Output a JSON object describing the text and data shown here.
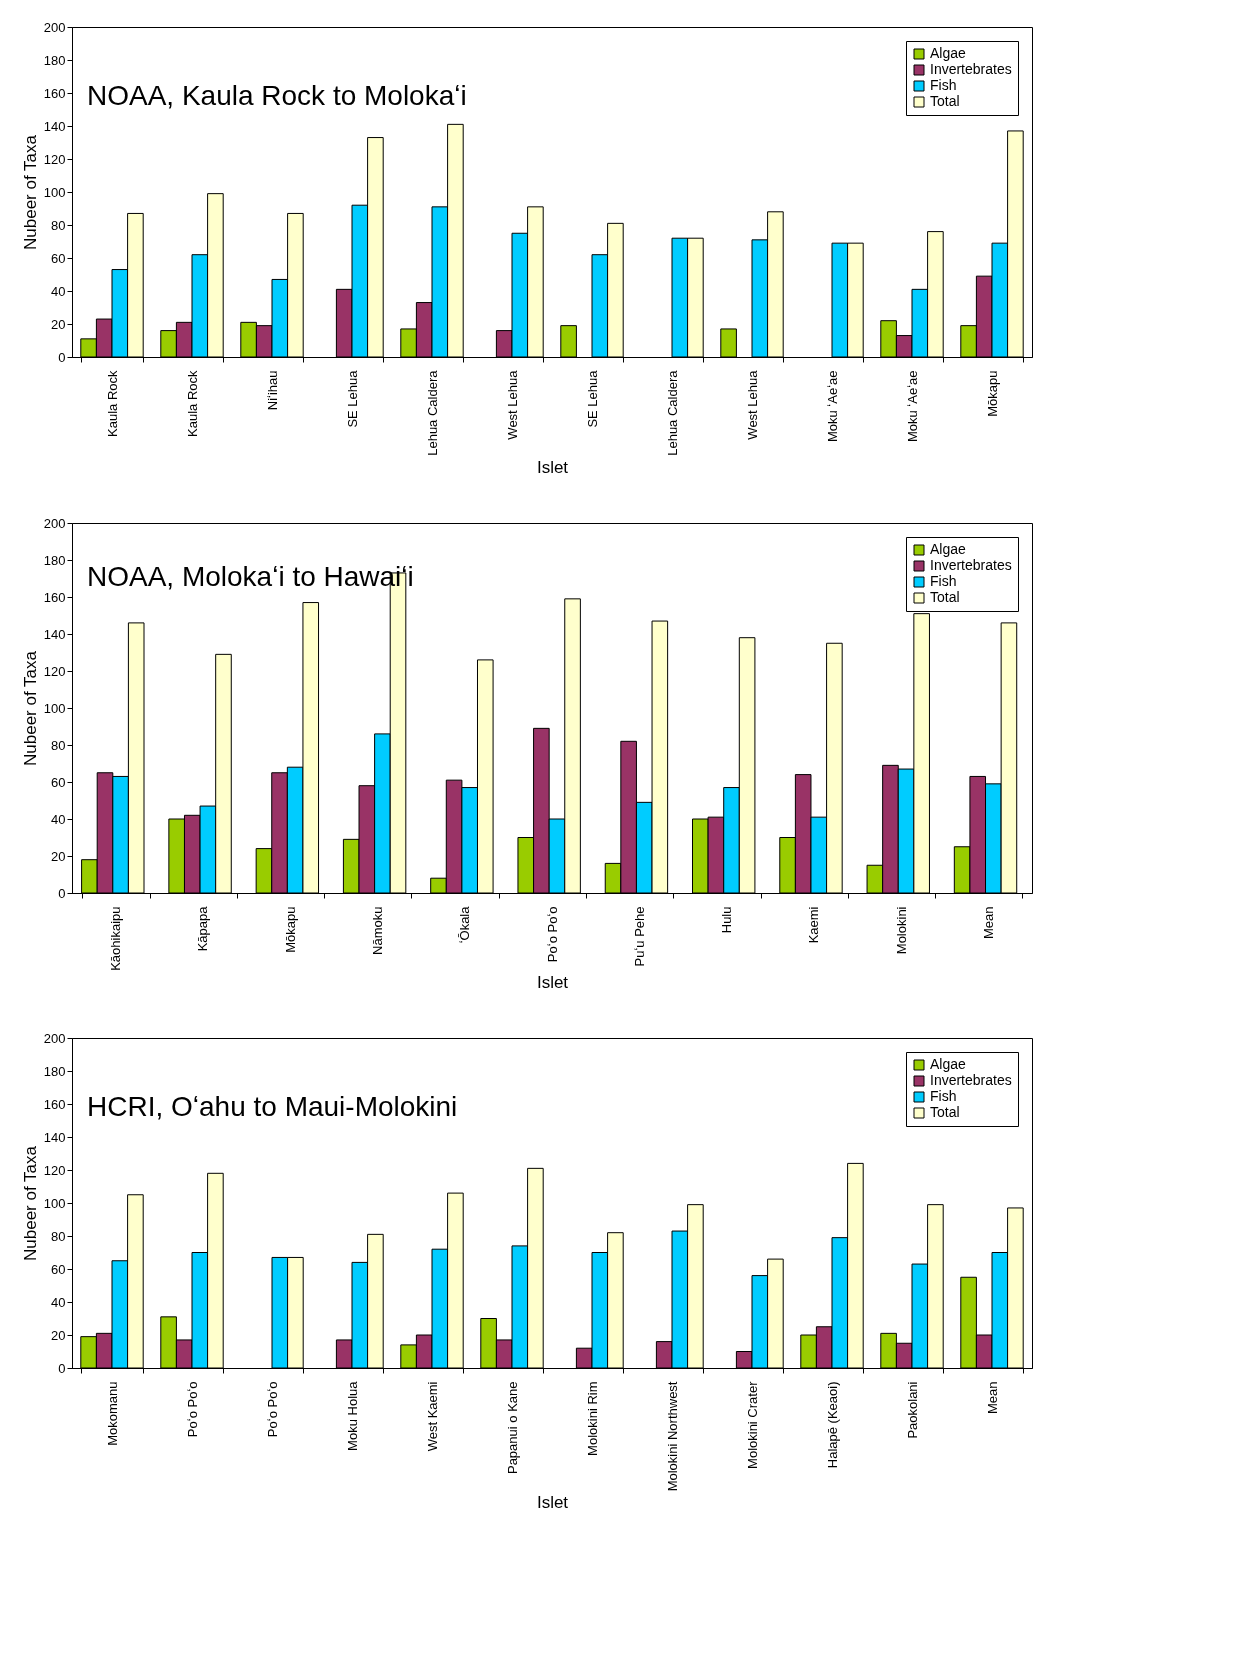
{
  "chart_data": [
    {
      "type": "bar",
      "title": "NOAA, Kaula Rock to Molokaʻi",
      "xlabel": "Islet",
      "ylabel": "Nubeer of Taxa",
      "categories": [
        "Kaula Rock",
        "Kaula Rock",
        "Niʻihau",
        "SE Lehua",
        "Lehua Caldera",
        "West Lehua",
        "SE Lehua",
        "Lehua Caldera",
        "West Lehua",
        "Moku ʻAeʻae",
        "Moku ʻAeʻae",
        "Mōkapu"
      ],
      "ylim": [
        0,
        200
      ],
      "yticks": [
        0,
        20,
        40,
        60,
        80,
        100,
        120,
        140,
        160,
        180,
        200
      ],
      "grid": false,
      "legend": "top right",
      "series": [
        {
          "name": "Algae",
          "color": "#99cc00",
          "values": [
            11,
            16,
            21,
            null,
            17,
            null,
            19,
            null,
            17,
            null,
            22,
            19
          ]
        },
        {
          "name": "Invertebrates",
          "color": "#993366",
          "values": [
            23,
            21,
            19,
            41,
            33,
            16,
            null,
            null,
            null,
            null,
            13,
            49
          ]
        },
        {
          "name": "Fish",
          "color": "#00ccff",
          "values": [
            53,
            62,
            47,
            92,
            91,
            75,
            62,
            72,
            71,
            69,
            41,
            69
          ]
        },
        {
          "name": "Total",
          "color": "#ffffcc",
          "values": [
            87,
            99,
            87,
            133,
            141,
            91,
            81,
            72,
            88,
            69,
            76,
            137
          ]
        }
      ]
    },
    {
      "type": "bar",
      "title": "NOAA, Molokaʻi to Hawaiʻi",
      "xlabel": "Islet",
      "ylabel": "Nubeer of Taxa",
      "categories": [
        "Kāohikaipu",
        "Kāpapa",
        "Mōkapu",
        "Nāmoku",
        "ʻŌkala",
        "Poʻo Poʻo",
        "Puʻu Pehe",
        "Hulu",
        "Kaemi",
        "Molokini",
        "Mean"
      ],
      "ylim": [
        0,
        200
      ],
      "yticks": [
        0,
        20,
        40,
        60,
        80,
        100,
        120,
        140,
        160,
        180,
        200
      ],
      "grid": false,
      "legend": "top right",
      "series": [
        {
          "name": "Algae",
          "color": "#99cc00",
          "values": [
            18,
            40,
            24,
            29,
            8,
            30,
            16,
            40,
            30,
            15,
            25
          ]
        },
        {
          "name": "Invertebrates",
          "color": "#993366",
          "values": [
            65,
            42,
            65,
            58,
            61,
            89,
            82,
            41,
            64,
            69,
            63
          ]
        },
        {
          "name": "Fish",
          "color": "#00ccff",
          "values": [
            63,
            47,
            68,
            86,
            57,
            40,
            49,
            57,
            41,
            67,
            59
          ]
        },
        {
          "name": "Total",
          "color": "#ffffcc",
          "values": [
            146,
            129,
            157,
            173,
            126,
            159,
            147,
            138,
            135,
            151,
            146
          ]
        }
      ]
    },
    {
      "type": "bar",
      "title": "HCRI, Oʻahu to Maui-Molokini",
      "xlabel": "Islet",
      "ylabel": "Nubeer of Taxa",
      "categories": [
        "Mokomanu",
        "Poʻo Poʻo",
        "Poʻo Poʻo",
        "Moku Holua",
        "West Kaemi",
        "Papanui o Kane",
        "Molokini Rim",
        "Molokini Northwest",
        "Molokini Crater",
        "Halapē (Keaoi)",
        "Paokolani",
        "Mean"
      ],
      "ylim": [
        0,
        200
      ],
      "yticks": [
        0,
        20,
        40,
        60,
        80,
        100,
        120,
        140,
        160,
        180,
        200
      ],
      "grid": false,
      "legend": "top right",
      "series": [
        {
          "name": "Algae",
          "color": "#99cc00",
          "values": [
            19,
            31,
            null,
            null,
            14,
            30,
            null,
            null,
            null,
            20,
            21,
            55
          ]
        },
        {
          "name": "Invertebrates",
          "color": "#993366",
          "values": [
            21,
            17,
            null,
            17,
            20,
            17,
            12,
            16,
            10,
            25,
            15,
            20
          ]
        },
        {
          "name": "Fish",
          "color": "#00ccff",
          "values": [
            65,
            70,
            67,
            64,
            72,
            74,
            70,
            83,
            56,
            79,
            63,
            70
          ]
        },
        {
          "name": "Total",
          "color": "#ffffcc",
          "values": [
            105,
            118,
            67,
            81,
            106,
            121,
            82,
            99,
            66,
            124,
            99,
            97
          ]
        }
      ]
    }
  ]
}
